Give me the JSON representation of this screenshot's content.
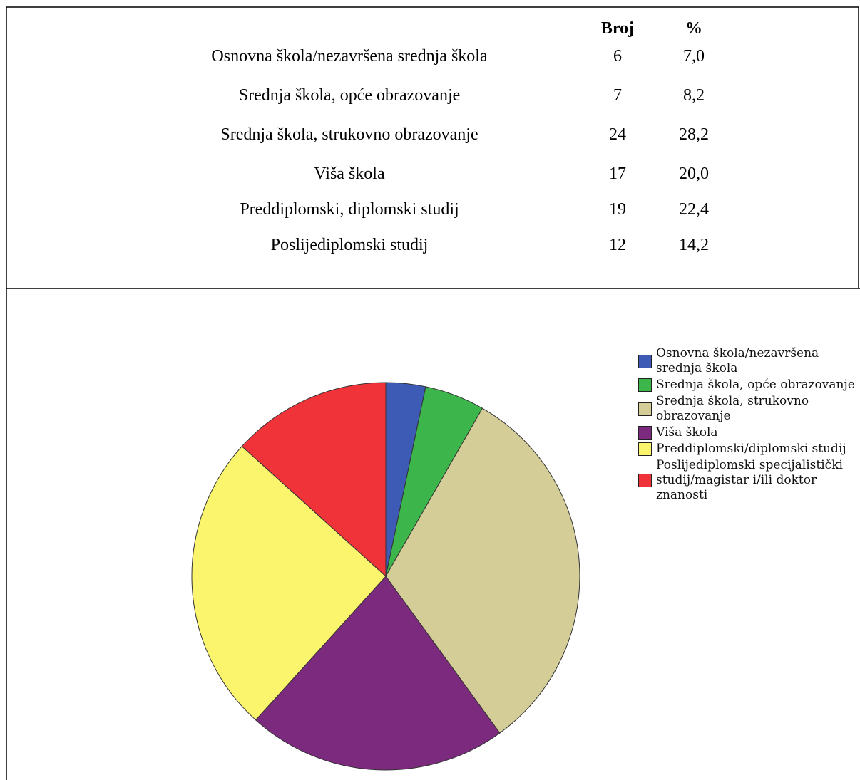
{
  "table": {
    "header": [
      "Broj",
      "%"
    ],
    "rows": [
      [
        "Osnovna škola/nezavršena srednja škola",
        6,
        "7,0"
      ],
      [
        "Srednja škola, opće obrazovanje",
        7,
        "8,2"
      ],
      [
        "Srednja škola, strukovno obrazovanje",
        24,
        "28,2"
      ],
      [
        "Viša škola",
        17,
        "20,0"
      ],
      [
        "Preddiplomski, diplomski studij",
        19,
        "22,4"
      ],
      [
        "Poslijediplomski studij",
        12,
        "14,2"
      ]
    ]
  },
  "chart_data": {
    "type": "pie",
    "categories": [
      "Osnovna škola/nezavršena srednja škola",
      "Srednja škola, opće obrazovanje",
      "Srednja škola, strukovno obrazovanje",
      "Viša škola",
      "Preddiplomski/diplomski studij",
      "Poslijediplomski specijalistički studij/magistar i/ili doktor znanosti"
    ],
    "values": [
      3.3,
      5,
      31.7,
      21.7,
      25,
      13.3
    ],
    "colors": [
      "#3d5bb5",
      "#3cb54a",
      "#d4cd98",
      "#7b2a7e",
      "#fbf56e",
      "#ef3339"
    ],
    "legend": "right"
  }
}
